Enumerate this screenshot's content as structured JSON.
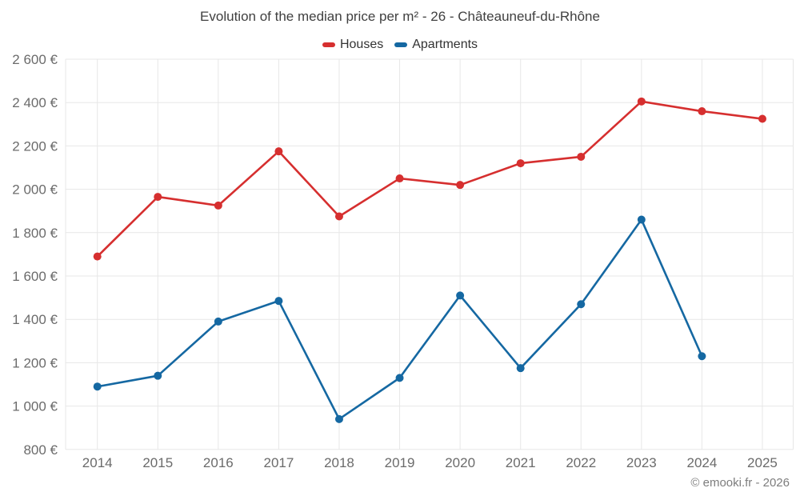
{
  "title": "Evolution of the median price per m² - 26 - Châteauneuf-du-Rhône",
  "footer": "© emooki.fr - 2026",
  "chart_data": {
    "type": "line",
    "title": "Evolution of the median price per m² - 26 - Châteauneuf-du-Rhône",
    "x": [
      2014,
      2015,
      2016,
      2017,
      2018,
      2019,
      2020,
      2021,
      2022,
      2023,
      2024,
      2025
    ],
    "series": [
      {
        "name": "Houses",
        "color": "#d62f2f",
        "values": [
          1690,
          1965,
          1925,
          2175,
          1875,
          2050,
          2020,
          2120,
          2150,
          2405,
          2360,
          2325
        ]
      },
      {
        "name": "Apartments",
        "color": "#1568a2",
        "values": [
          1090,
          1140,
          1390,
          1485,
          940,
          1130,
          1510,
          1175,
          1470,
          1860,
          1230,
          null
        ]
      }
    ],
    "ylim": [
      800,
      2600
    ],
    "ytick_step": 200,
    "ytick_suffix": " €",
    "xlabel": "",
    "ylabel": "",
    "grid": true,
    "legend_position": "top"
  }
}
